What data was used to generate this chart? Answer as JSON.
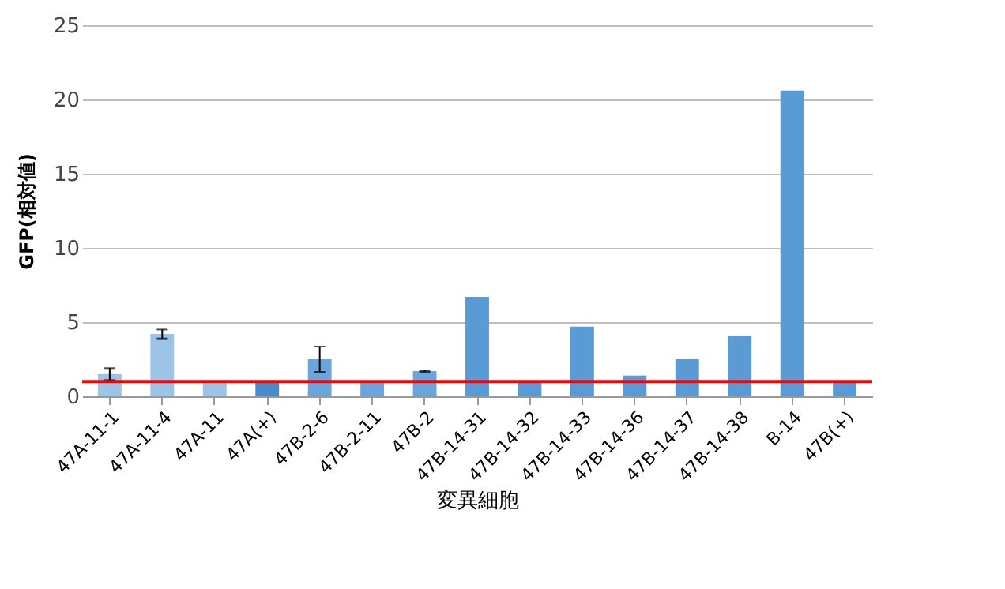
{
  "chart_data": {
    "type": "bar",
    "xlabel": "変異細胞",
    "ylabel": "GFP(相対値)",
    "categories": [
      "47A-11-1",
      "47A-11-4",
      "47A-11",
      "47A(+)",
      "47B-2-6",
      "47B-2-11",
      "47B-2",
      "47B-14-31",
      "47B-14-32",
      "47B-14-33",
      "47B-14-36",
      "47B-14-37",
      "47B-14-38",
      "B-14",
      "47B(+)"
    ],
    "values": [
      1.5,
      4.2,
      0.9,
      1.0,
      2.5,
      0.9,
      1.7,
      6.7,
      1.0,
      4.7,
      1.4,
      2.5,
      4.1,
      20.6,
      1.0
    ],
    "errors": [
      0.4,
      0.3,
      null,
      null,
      0.85,
      null,
      0.05,
      null,
      null,
      null,
      null,
      null,
      null,
      null,
      null
    ],
    "colors": [
      "#9dc3e6",
      "#9dc3e6",
      "#9dc3e6",
      "#4a8bc9",
      "#6aa6dc",
      "#6aa6dc",
      "#6aa6dc",
      "#5b9bd5",
      "#5b9bd5",
      "#5b9bd5",
      "#5b9bd5",
      "#5b9bd5",
      "#5b9bd5",
      "#5b9bd5",
      "#5b9bd5"
    ],
    "ylim": [
      0,
      25
    ],
    "yticks": [
      0,
      5,
      10,
      15,
      20,
      25
    ],
    "grid": "y",
    "ref_lines": [
      {
        "axis": "y",
        "value": 1.0,
        "color": "#ff0000"
      }
    ]
  }
}
